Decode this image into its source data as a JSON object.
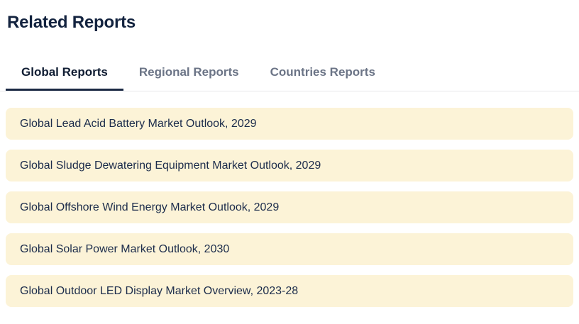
{
  "section": {
    "title": "Related Reports"
  },
  "tabs": [
    {
      "label": "Global Reports",
      "active": true
    },
    {
      "label": "Regional Reports",
      "active": false
    },
    {
      "label": "Countries Reports",
      "active": false
    }
  ],
  "reports": [
    "Global Lead Acid Battery Market Outlook, 2029",
    "Global Sludge Dewatering Equipment Market Outlook, 2029",
    "Global Offshore Wind Energy Market Outlook, 2029",
    "Global Solar Power Market Outlook, 2030",
    "Global Outdoor LED Display Market Overview, 2023-28"
  ],
  "colors": {
    "title_text": "#13233f",
    "active_tab_text": "#101d33",
    "active_tab_underline": "#1b2944",
    "inactive_tab_text": "#6b7486",
    "tabbar_divider": "#e8e8ea",
    "report_row_background": "#fcf3d7",
    "report_row_text": "#1c2c4b",
    "page_background": "#ffffff"
  }
}
